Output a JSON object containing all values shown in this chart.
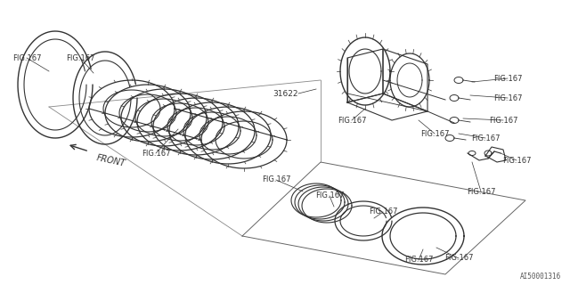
{
  "bg_color": "#ffffff",
  "line_color": "#333333",
  "text_color": "#333333",
  "fig_label": "FIG.167",
  "part_label": "31622",
  "diagram_id": "AI50001316",
  "front_label": "FRONT",
  "label_fontsize": 6.0,
  "small_fontsize": 5.5
}
